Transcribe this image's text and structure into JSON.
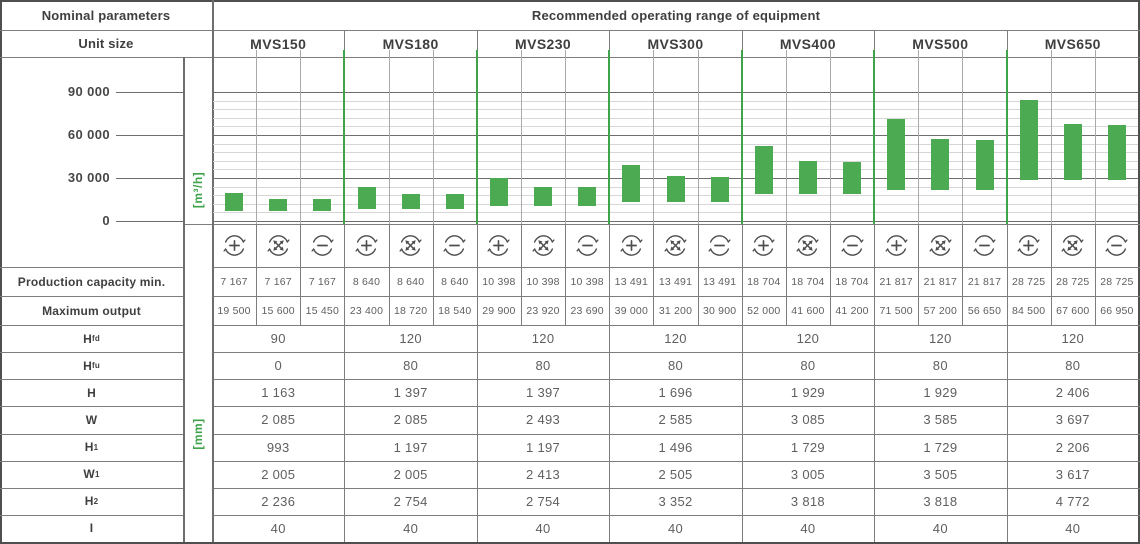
{
  "header": {
    "left": "Nominal parameters",
    "right": "Recommended operating range of equipment"
  },
  "unit_row": {
    "label": "Unit size",
    "units": [
      "MVS150",
      "MVS180",
      "MVS230",
      "MVS300",
      "MVS400",
      "MVS500",
      "MVS650"
    ]
  },
  "chart_data": {
    "type": "range-bar",
    "title": "Recommended operating range of equipment",
    "ylabel": "[m³/h]",
    "ylim": [
      0,
      114000
    ],
    "ytick_values": [
      90000,
      60000,
      30000,
      0
    ],
    "ytick_labels": [
      "90 000",
      "60 000",
      "30 000",
      "0"
    ],
    "minor_gridline_step": 6000,
    "major_gridline_step": 30000,
    "grid": true,
    "groups": [
      {
        "unit": "MVS150",
        "bars": [
          {
            "icon": "plus",
            "min": 7167,
            "max": 19500
          },
          {
            "icon": "cross",
            "min": 7167,
            "max": 15600
          },
          {
            "icon": "minus",
            "min": 7167,
            "max": 15450
          }
        ]
      },
      {
        "unit": "MVS180",
        "bars": [
          {
            "icon": "plus",
            "min": 8640,
            "max": 23400
          },
          {
            "icon": "cross",
            "min": 8640,
            "max": 18720
          },
          {
            "icon": "minus",
            "min": 8640,
            "max": 18540
          }
        ]
      },
      {
        "unit": "MVS230",
        "bars": [
          {
            "icon": "plus",
            "min": 10398,
            "max": 29900
          },
          {
            "icon": "cross",
            "min": 10398,
            "max": 23920
          },
          {
            "icon": "minus",
            "min": 10398,
            "max": 23690
          }
        ]
      },
      {
        "unit": "MVS300",
        "bars": [
          {
            "icon": "plus",
            "min": 13491,
            "max": 39000
          },
          {
            "icon": "cross",
            "min": 13491,
            "max": 31200
          },
          {
            "icon": "minus",
            "min": 13491,
            "max": 30900
          }
        ]
      },
      {
        "unit": "MVS400",
        "bars": [
          {
            "icon": "plus",
            "min": 18704,
            "max": 52000
          },
          {
            "icon": "cross",
            "min": 18704,
            "max": 41600
          },
          {
            "icon": "minus",
            "min": 18704,
            "max": 41200
          }
        ]
      },
      {
        "unit": "MVS500",
        "bars": [
          {
            "icon": "plus",
            "min": 21817,
            "max": 71500
          },
          {
            "icon": "cross",
            "min": 21817,
            "max": 57200
          },
          {
            "icon": "minus",
            "min": 21817,
            "max": 56650
          }
        ]
      },
      {
        "unit": "MVS650",
        "bars": [
          {
            "icon": "plus",
            "min": 28725,
            "max": 84500
          },
          {
            "icon": "cross",
            "min": 28725,
            "max": 67600
          },
          {
            "icon": "minus",
            "min": 28725,
            "max": 66950
          }
        ]
      }
    ]
  },
  "icons": {
    "sequence": [
      "plus",
      "cross",
      "minus"
    ]
  },
  "capacity_rows": [
    {
      "label": "Production capacity min.",
      "values": [
        "7 167",
        "7 167",
        "7 167",
        "8 640",
        "8 640",
        "8 640",
        "10 398",
        "10 398",
        "10 398",
        "13 491",
        "13 491",
        "13 491",
        "18 704",
        "18 704",
        "18 704",
        "21 817",
        "21 817",
        "21 817",
        "28 725",
        "28 725",
        "28 725"
      ]
    },
    {
      "label": "Maximum output",
      "values": [
        "19 500",
        "15 600",
        "15 450",
        "23 400",
        "18 720",
        "18 540",
        "29 900",
        "23 920",
        "23 690",
        "39 000",
        "31 200",
        "30 900",
        "52 000",
        "41 600",
        "41 200",
        "71 500",
        "57 200",
        "56 650",
        "84 500",
        "67 600",
        "66 950"
      ]
    }
  ],
  "dimensions_unit_label": "[mm]",
  "dimension_rows": [
    {
      "base": "H",
      "sub": "fd",
      "values": [
        "90",
        "120",
        "120",
        "120",
        "120",
        "120",
        "120"
      ]
    },
    {
      "base": "H",
      "sub": "fu",
      "values": [
        "0",
        "80",
        "80",
        "80",
        "80",
        "80",
        "80"
      ]
    },
    {
      "base": "H",
      "sub": "",
      "values": [
        "1 163",
        "1 397",
        "1 397",
        "1 696",
        "1 929",
        "1 929",
        "2 406"
      ]
    },
    {
      "base": "W",
      "sub": "",
      "values": [
        "2 085",
        "2 085",
        "2 493",
        "2 585",
        "3 085",
        "3 585",
        "3 697"
      ]
    },
    {
      "base": "H",
      "sub": "1",
      "values": [
        "993",
        "1 197",
        "1 197",
        "1 496",
        "1 729",
        "1 729",
        "2 206"
      ]
    },
    {
      "base": "W",
      "sub": "1",
      "values": [
        "2 005",
        "2 005",
        "2 413",
        "2 505",
        "3 005",
        "3 505",
        "3 617"
      ]
    },
    {
      "base": "H",
      "sub": "2",
      "values": [
        "2 236",
        "2 754",
        "2 754",
        "3 352",
        "3 818",
        "3 818",
        "4 772"
      ]
    },
    {
      "base": "I",
      "sub": "",
      "values": [
        "40",
        "40",
        "40",
        "40",
        "40",
        "40",
        "40"
      ]
    }
  ],
  "colors": {
    "bar_green": "#4cab52",
    "accent_green": "#3fa34b",
    "text_dark": "#3f3f3f",
    "text_value": "#5f5f5f",
    "border": "#7d7d7d",
    "border_dark": "#4f4f4f",
    "grid_minor": "#d7d7d7",
    "grid_major": "#6e6e6e",
    "subcol_line": "#a9a9a9"
  }
}
